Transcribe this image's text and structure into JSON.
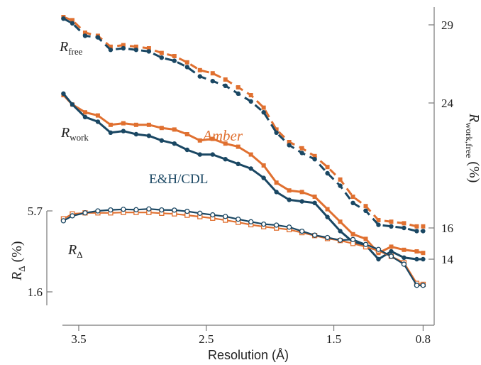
{
  "chart_data": {
    "type": "line",
    "xlabel": "Resolution (Å)",
    "xticks": [
      "3.5",
      "2.5",
      "1.5",
      "0.8"
    ],
    "xlim": [
      3.65,
      0.78
    ],
    "right_axis": {
      "label_main": "R",
      "label_sub": "work,free",
      "label_tail": " (%)",
      "ticks": [
        "29",
        "24",
        "16",
        "14"
      ],
      "ylim": [
        11.0,
        30.0
      ]
    },
    "left_axis": {
      "label_main": "R",
      "label_sub": "Δ",
      "label_tail": " (%)",
      "ticks": [
        "5.7",
        "1.6"
      ],
      "ylim": [
        1.6,
        5.7
      ]
    },
    "annotations": {
      "rfree": {
        "main": "R",
        "sub": "free"
      },
      "rwork": {
        "main": "R",
        "sub": "work"
      },
      "rdelta": {
        "main": "R",
        "sub": "Δ"
      },
      "amber": "Amber",
      "ehcdl": "E&H/CDL"
    },
    "colors": {
      "amber": "#e07030",
      "ehcdl": "#1a4763"
    },
    "x": [
      3.62,
      3.55,
      3.45,
      3.35,
      3.25,
      3.15,
      3.05,
      2.95,
      2.85,
      2.75,
      2.65,
      2.55,
      2.45,
      2.35,
      2.25,
      2.15,
      2.05,
      1.95,
      1.85,
      1.75,
      1.65,
      1.55,
      1.45,
      1.35,
      1.25,
      1.15,
      1.05,
      0.95,
      0.85,
      0.8
    ],
    "series": [
      {
        "name": "Amber",
        "kind": "Rfree",
        "dashed": true,
        "marker": "square",
        "values": [
          29.5,
          29.3,
          28.5,
          28.3,
          27.6,
          27.7,
          27.6,
          27.5,
          27.2,
          27.0,
          26.6,
          26.1,
          25.9,
          25.5,
          25.0,
          24.5,
          23.7,
          22.3,
          21.5,
          21.1,
          20.6,
          19.9,
          19.1,
          18.0,
          17.4,
          16.5,
          16.4,
          16.3,
          16.1,
          16.1
        ],
        "style": "amber"
      },
      {
        "name": "E&H/CDL",
        "kind": "Rfree",
        "dashed": true,
        "marker": "circle",
        "values": [
          29.4,
          29.1,
          28.3,
          28.2,
          27.4,
          27.5,
          27.4,
          27.3,
          26.9,
          26.7,
          26.3,
          25.7,
          25.4,
          25.1,
          24.6,
          24.1,
          23.4,
          22.1,
          21.3,
          20.8,
          20.4,
          19.5,
          18.7,
          17.6,
          17.1,
          16.2,
          16.1,
          16.0,
          15.8,
          15.8
        ],
        "style": "ehcdl"
      },
      {
        "name": "Amber",
        "kind": "Rwork",
        "dashed": false,
        "marker": "square",
        "values": [
          24.5,
          23.9,
          23.4,
          23.2,
          22.6,
          22.7,
          22.6,
          22.6,
          22.4,
          22.3,
          22.0,
          21.6,
          21.7,
          21.4,
          21.2,
          20.7,
          20.0,
          18.9,
          18.4,
          18.3,
          18.0,
          17.2,
          16.4,
          15.6,
          15.3,
          14.4,
          14.8,
          14.6,
          14.5,
          14.4
        ],
        "style": "amber"
      },
      {
        "name": "E&H/CDL",
        "kind": "Rwork",
        "dashed": false,
        "marker": "circle",
        "values": [
          24.6,
          23.9,
          23.1,
          22.8,
          22.1,
          22.2,
          22.0,
          21.9,
          21.6,
          21.4,
          21.0,
          20.7,
          20.7,
          20.4,
          20.1,
          19.8,
          19.2,
          18.3,
          17.8,
          17.7,
          17.6,
          16.7,
          15.8,
          15.1,
          14.9,
          14.0,
          14.5,
          14.1,
          14.0,
          14.0
        ],
        "style": "ehcdl"
      },
      {
        "name": "Amber",
        "kind": "RDelta",
        "dashed": false,
        "marker": "open-square",
        "values": [
          5.3,
          5.55,
          5.6,
          5.6,
          5.6,
          5.62,
          5.62,
          5.62,
          5.58,
          5.55,
          5.48,
          5.41,
          5.33,
          5.23,
          5.12,
          5.0,
          4.9,
          4.83,
          4.75,
          4.6,
          4.45,
          4.3,
          4.2,
          4.05,
          3.88,
          3.68,
          3.4,
          3.08,
          2.03,
          1.98
        ],
        "style": "amber"
      },
      {
        "name": "E&H/CDL",
        "kind": "RDelta",
        "dashed": false,
        "marker": "open-circle",
        "values": [
          5.2,
          5.45,
          5.6,
          5.7,
          5.75,
          5.78,
          5.76,
          5.8,
          5.75,
          5.74,
          5.68,
          5.58,
          5.5,
          5.42,
          5.28,
          5.15,
          5.03,
          4.98,
          4.88,
          4.67,
          4.47,
          4.35,
          4.22,
          4.25,
          4.0,
          3.75,
          3.4,
          3.0,
          1.93,
          1.93
        ],
        "style": "ehcdl"
      }
    ]
  }
}
